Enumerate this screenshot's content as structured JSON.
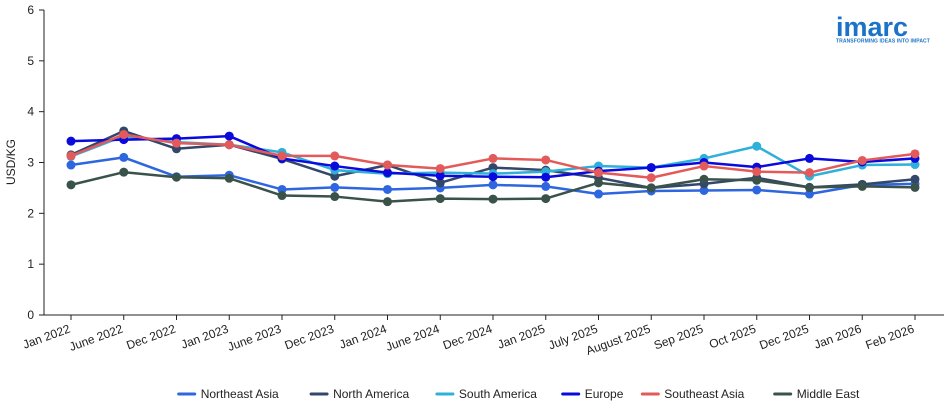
{
  "logo": {
    "word": "imarc",
    "tagline": "TRANSFORMING IDEAS INTO IMPACT",
    "color": "#1a73c9"
  },
  "chart_data": {
    "type": "line",
    "title": "",
    "xlabel": "",
    "ylabel": "USD/KG",
    "ylim": [
      0,
      6
    ],
    "yticks": [
      0,
      1,
      2,
      3,
      4,
      5,
      6
    ],
    "grid": false,
    "legend_position": "bottom",
    "categories": [
      "Jan 2022",
      "June 2022",
      "Dec 2022",
      "Jan 2023",
      "June 2023",
      "Dec 2023",
      "Jan 2024",
      "June 2024",
      "Dec 2024",
      "Jan 2025",
      "July 2025",
      "August 2025",
      "Sep 2025",
      "Oct 2025",
      "Dec 2025",
      "Jan 2026",
      "Feb 2026"
    ],
    "series": [
      {
        "name": "Northeast Asia",
        "color": "#2e66e0",
        "values": [
          2.95,
          3.1,
          2.72,
          2.75,
          2.47,
          2.51,
          2.47,
          2.5,
          2.56,
          2.53,
          2.38,
          2.44,
          2.45,
          2.46,
          2.38,
          2.56,
          2.58
        ]
      },
      {
        "name": "North America",
        "color": "#33476a",
        "values": [
          3.15,
          3.62,
          3.27,
          3.35,
          3.07,
          2.73,
          2.95,
          2.6,
          2.9,
          2.85,
          2.7,
          2.5,
          2.58,
          2.7,
          2.51,
          2.57,
          2.67
        ]
      },
      {
        "name": "South America",
        "color": "#2eb0d8",
        "values": [
          3.12,
          3.52,
          3.4,
          3.35,
          3.2,
          2.85,
          2.78,
          2.8,
          2.78,
          2.82,
          2.93,
          2.9,
          3.08,
          3.32,
          2.73,
          2.95,
          2.96
        ]
      },
      {
        "name": "Europe",
        "color": "#0a0adc",
        "values": [
          3.42,
          3.45,
          3.47,
          3.52,
          3.08,
          2.93,
          2.8,
          2.74,
          2.72,
          2.71,
          2.83,
          2.9,
          3.0,
          2.91,
          3.08,
          3.01,
          3.08
        ]
      },
      {
        "name": "Southeast Asia",
        "color": "#e35a5a",
        "values": [
          3.13,
          3.55,
          3.38,
          3.35,
          3.13,
          3.13,
          2.95,
          2.88,
          3.08,
          3.05,
          2.8,
          2.7,
          2.93,
          2.82,
          2.8,
          3.04,
          3.17
        ]
      },
      {
        "name": "Middle East",
        "color": "#3a534a",
        "values": [
          2.56,
          2.81,
          2.71,
          2.69,
          2.35,
          2.33,
          2.23,
          2.29,
          2.28,
          2.29,
          2.6,
          2.5,
          2.67,
          2.65,
          2.51,
          2.53,
          2.51
        ]
      }
    ]
  }
}
